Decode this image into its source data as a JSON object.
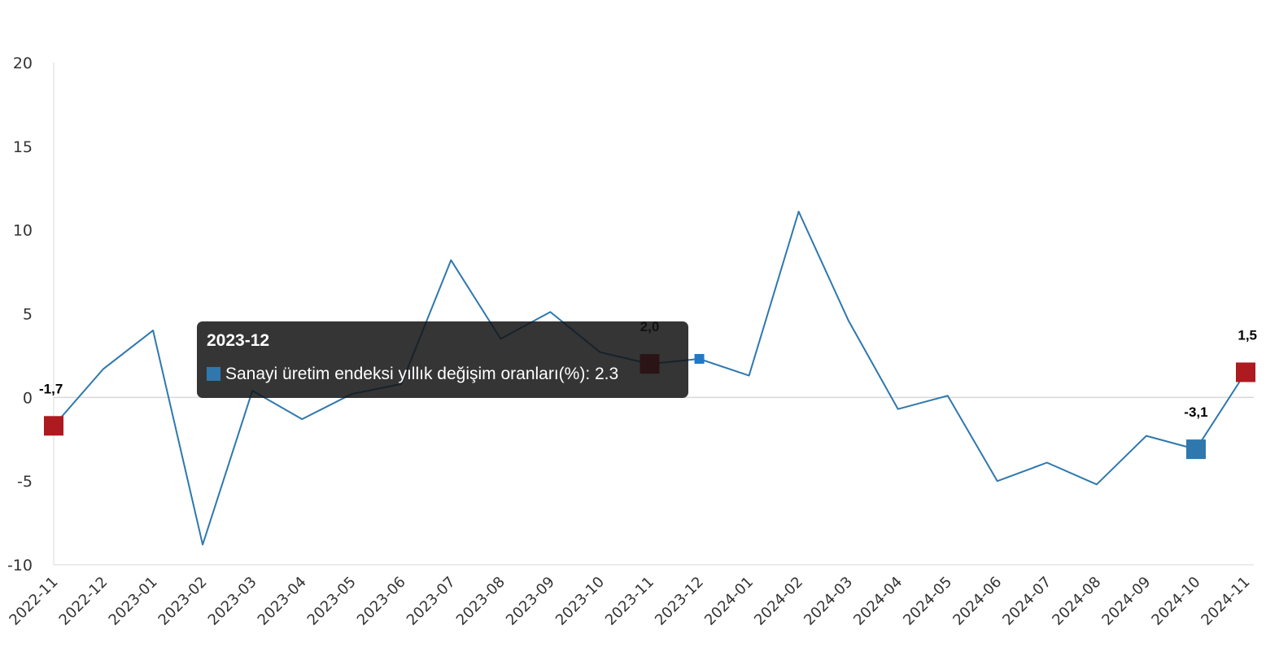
{
  "chart_data": {
    "type": "line",
    "title": "",
    "xlabel": "",
    "ylabel": "",
    "ylim": [
      -10,
      20
    ],
    "yticks": [
      20,
      15,
      10,
      5,
      0,
      -5,
      -10
    ],
    "grid": false,
    "categories": [
      "2022-11",
      "2022-12",
      "2023-01",
      "2023-02",
      "2023-03",
      "2023-04",
      "2023-05",
      "2023-06",
      "2023-07",
      "2023-08",
      "2023-09",
      "2023-10",
      "2023-11",
      "2023-12",
      "2024-01",
      "2024-02",
      "2024-03",
      "2024-04",
      "2024-05",
      "2024-06",
      "2024-07",
      "2024-08",
      "2024-09",
      "2024-10",
      "2024-11"
    ],
    "series": [
      {
        "name": "Sanayi üretim endeksi yıllık değişim oranları(%)",
        "values": [
          -1.7,
          1.7,
          4.0,
          -8.8,
          0.4,
          -1.3,
          0.2,
          0.8,
          8.2,
          3.5,
          5.1,
          2.7,
          2.0,
          2.3,
          1.3,
          11.1,
          4.6,
          -0.7,
          0.1,
          -5.0,
          -3.9,
          -5.2,
          -2.3,
          -3.1,
          1.5
        ]
      }
    ],
    "highlighted_points": [
      {
        "category": "2022-11",
        "label": "-1,7",
        "kind": "max"
      },
      {
        "category": "2023-11",
        "label": "2,0",
        "kind": "max"
      },
      {
        "category": "2024-10",
        "label": "-3,1",
        "kind": "min"
      },
      {
        "category": "2024-11",
        "label": "1,5",
        "kind": "max"
      }
    ],
    "tooltip": {
      "category": "2023-12",
      "text": "Sanayi üretim endeksi yıllık değişim oranları(%): 2.3"
    }
  },
  "colors": {
    "line": "#2e78ad",
    "marker_red": "#ad1a1f",
    "marker_blue": "#2e78ad",
    "hover_marker": "#1f78c8",
    "tooltip_bg": "#141414"
  }
}
